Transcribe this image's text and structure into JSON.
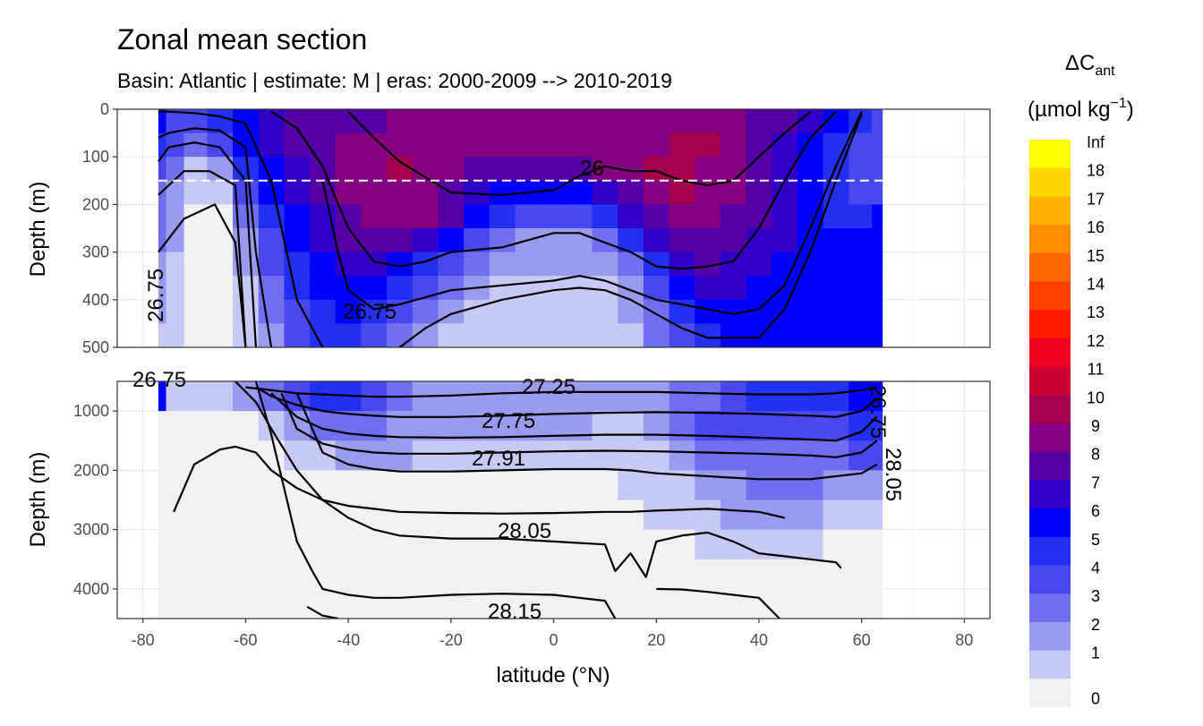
{
  "chart_data": {
    "type": "contour-section",
    "title": "Zonal mean section",
    "subtitle": "Basin: Atlantic | estimate: M  | eras: 2000-2009 --> 2010-2019",
    "xlabel": "latitude (°N)",
    "ylabel_top": "Depth (m)",
    "ylabel_bottom": "Depth (m)",
    "xlim": [
      -85,
      85
    ],
    "x_ticks": [
      "-80",
      "-60",
      "-40",
      "-20",
      "0",
      "20",
      "40",
      "60",
      "80"
    ],
    "top_panel": {
      "ylim": [
        0,
        500
      ],
      "y_ticks": [
        "0",
        "100",
        "200",
        "300",
        "400",
        "500"
      ],
      "dashed_line_depth": 150
    },
    "bottom_panel": {
      "ylim": [
        500,
        4500
      ],
      "y_ticks": [
        "1000",
        "2000",
        "3000",
        "4000"
      ]
    },
    "legend": {
      "title_main": "ΔC",
      "title_sub": "ant",
      "unit_prefix": "(µmol kg",
      "unit_sup": "−1",
      "unit_suffix": ")",
      "labels": [
        "Inf",
        "18",
        "17",
        "16",
        "15",
        "14",
        "13",
        "12",
        "11",
        "10",
        "9",
        "8",
        "7",
        "6",
        "5",
        "4",
        "3",
        "2",
        "1",
        "0"
      ],
      "colors": [
        "#ffff00",
        "#ffd700",
        "#ffb000",
        "#ff8c00",
        "#ff6600",
        "#ff4000",
        "#ff1a00",
        "#ee0020",
        "#cc0033",
        "#a2004f",
        "#850080",
        "#5500a6",
        "#3000c8",
        "#0000ff",
        "#2330f0",
        "#4848ee",
        "#7070ee",
        "#9a9aee",
        "#c8c8f4",
        "#f1f1f1"
      ]
    },
    "contour_labels_top": [
      "26",
      "26.75",
      "26.75"
    ],
    "contour_labels_bottom": [
      "26.75",
      "27.25",
      "27.75",
      "27.91",
      "28.05",
      "28.15",
      "26.75",
      "28.05"
    ],
    "x_values": [
      -77,
      -74,
      -70,
      -65,
      -60,
      -55,
      -50,
      -45,
      -40,
      -35,
      -30,
      -25,
      -20,
      -15,
      -10,
      -5,
      0,
      5,
      10,
      15,
      20,
      25,
      30,
      35,
      40,
      45,
      50,
      55,
      60,
      64
    ],
    "layer_depths_top_m": [
      25,
      75,
      125,
      175,
      225,
      275,
      325,
      375,
      425,
      475
    ],
    "cant_top": [
      [
        6,
        4,
        4,
        5,
        6,
        7,
        8,
        8,
        8,
        8,
        9,
        9,
        9,
        9,
        9,
        9,
        9,
        9,
        9,
        9,
        9,
        9,
        9,
        9,
        8,
        8,
        7,
        6,
        5,
        4
      ],
      [
        5,
        4,
        3,
        4,
        6,
        7,
        8,
        8,
        9,
        9,
        9,
        9,
        9,
        9,
        9,
        9,
        9,
        9,
        9,
        9,
        9,
        10,
        10,
        9,
        8,
        7,
        6,
        5,
        4,
        4
      ],
      [
        4,
        3,
        1,
        2,
        5,
        6,
        7,
        8,
        9,
        9,
        10,
        9,
        9,
        8,
        8,
        8,
        8,
        8,
        9,
        9,
        10,
        10,
        9,
        9,
        8,
        7,
        6,
        5,
        4,
        4
      ],
      [
        3,
        2,
        1,
        1,
        4,
        6,
        7,
        8,
        9,
        9,
        9,
        9,
        8,
        7,
        6,
        6,
        6,
        6,
        7,
        8,
        9,
        10,
        9,
        9,
        8,
        7,
        6,
        5,
        4,
        4
      ],
      [
        3,
        2,
        0,
        0,
        3,
        5,
        6,
        7,
        8,
        9,
        9,
        9,
        8,
        6,
        5,
        4,
        4,
        4,
        5,
        7,
        8,
        9,
        9,
        8,
        8,
        7,
        6,
        5,
        5,
        6
      ],
      [
        3,
        2,
        0,
        0,
        2,
        4,
        6,
        7,
        8,
        8,
        8,
        7,
        6,
        4,
        3,
        2,
        2,
        2,
        3,
        5,
        7,
        8,
        8,
        8,
        7,
        7,
        6,
        6,
        6,
        6
      ],
      [
        2,
        1,
        0,
        0,
        2,
        4,
        5,
        6,
        7,
        7,
        6,
        5,
        4,
        3,
        2,
        2,
        2,
        2,
        2,
        3,
        5,
        7,
        8,
        7,
        7,
        6,
        6,
        6,
        6,
        6
      ],
      [
        2,
        1,
        0,
        0,
        1,
        3,
        5,
        6,
        6,
        6,
        5,
        4,
        3,
        2,
        1,
        1,
        1,
        1,
        1,
        2,
        4,
        6,
        7,
        7,
        6,
        6,
        6,
        6,
        6,
        6
      ],
      [
        2,
        1,
        0,
        0,
        1,
        3,
        4,
        5,
        6,
        5,
        4,
        3,
        2,
        1,
        1,
        1,
        1,
        1,
        1,
        2,
        3,
        5,
        6,
        6,
        6,
        6,
        6,
        6,
        6,
        6
      ],
      [
        1,
        1,
        0,
        0,
        1,
        2,
        4,
        5,
        5,
        4,
        3,
        2,
        1,
        1,
        1,
        1,
        1,
        1,
        1,
        1,
        3,
        4,
        5,
        6,
        6,
        6,
        6,
        6,
        6,
        6
      ]
    ],
    "layer_depths_bottom_m": [
      750,
      1250,
      1750,
      2250,
      2750,
      3250,
      3750,
      4250
    ],
    "cant_bottom": [
      [
        6,
        1,
        1,
        1,
        2,
        3,
        4,
        5,
        5,
        4,
        3,
        2,
        2,
        2,
        2,
        2,
        2,
        2,
        2,
        2,
        2,
        3,
        3,
        4,
        5,
        5,
        5,
        5,
        6,
        6
      ],
      [
        0,
        0,
        0,
        0,
        0,
        1,
        2,
        3,
        3,
        3,
        2,
        2,
        2,
        2,
        2,
        2,
        2,
        2,
        1,
        1,
        2,
        3,
        4,
        4,
        4,
        4,
        4,
        4,
        5,
        5
      ],
      [
        0,
        0,
        0,
        0,
        0,
        0,
        1,
        1,
        2,
        2,
        2,
        1,
        1,
        1,
        1,
        1,
        1,
        1,
        1,
        1,
        1,
        2,
        3,
        3,
        3,
        3,
        3,
        3,
        4,
        4
      ],
      [
        0,
        0,
        0,
        0,
        0,
        0,
        0,
        0,
        0,
        0,
        0,
        0,
        0,
        0,
        0,
        0,
        0,
        0,
        0,
        1,
        1,
        1,
        2,
        2,
        3,
        3,
        3,
        2,
        2,
        2
      ],
      [
        0,
        0,
        0,
        0,
        0,
        0,
        0,
        0,
        0,
        0,
        0,
        0,
        0,
        0,
        0,
        0,
        0,
        0,
        0,
        0,
        1,
        1,
        1,
        2,
        2,
        2,
        2,
        1,
        1,
        1
      ],
      [
        0,
        0,
        0,
        0,
        0,
        0,
        0,
        0,
        0,
        0,
        0,
        0,
        0,
        0,
        0,
        0,
        0,
        0,
        0,
        0,
        0,
        0,
        1,
        1,
        1,
        1,
        1,
        0,
        0,
        0
      ],
      [
        0,
        0,
        0,
        0,
        0,
        0,
        0,
        0,
        0,
        0,
        0,
        0,
        0,
        0,
        0,
        0,
        0,
        0,
        0,
        0,
        0,
        0,
        0,
        0,
        0,
        0,
        0,
        0,
        0,
        0
      ],
      [
        0,
        0,
        0,
        0,
        0,
        0,
        0,
        0,
        0,
        0,
        0,
        0,
        0,
        0,
        0,
        0,
        0,
        0,
        0,
        0,
        0,
        0,
        0,
        0,
        0,
        0,
        0,
        0,
        0,
        0
      ]
    ],
    "isopycnals_top": [
      {
        "x": [
          -77,
          -75,
          -70,
          -65,
          -60,
          -55,
          -50,
          -45
        ],
        "depth": [
          5,
          5,
          8,
          15,
          30,
          150,
          400,
          500
        ]
      },
      {
        "x": [
          -77,
          -75,
          -70,
          -65,
          -60,
          -58,
          -55
        ],
        "depth": [
          60,
          50,
          40,
          45,
          80,
          300,
          500
        ]
      },
      {
        "x": [
          -77,
          -75,
          -70,
          -65,
          -60,
          -58
        ],
        "depth": [
          110,
          80,
          70,
          80,
          150,
          500
        ]
      },
      {
        "x": [
          -77,
          -72,
          -67,
          -62,
          -60
        ],
        "depth": [
          180,
          130,
          130,
          160,
          500
        ]
      },
      {
        "x": [
          -77,
          -72,
          -66,
          -62,
          -60
        ],
        "depth": [
          300,
          230,
          200,
          280,
          500
        ]
      },
      {
        "x": [
          -40,
          -35,
          -30,
          -20,
          -10,
          0,
          5,
          10,
          15,
          20,
          25,
          30,
          35,
          40,
          45,
          50
        ],
        "depth": [
          5,
          60,
          110,
          175,
          180,
          170,
          140,
          120,
          130,
          130,
          150,
          160,
          150,
          100,
          50,
          5
        ]
      },
      {
        "x": [
          -55,
          -50,
          -45,
          -40,
          -35,
          -30,
          -25,
          -20,
          -10,
          0,
          5,
          10,
          15,
          20,
          25,
          30,
          35,
          40,
          45,
          50,
          55
        ],
        "depth": [
          5,
          40,
          120,
          250,
          320,
          330,
          320,
          300,
          290,
          260,
          260,
          280,
          300,
          330,
          335,
          330,
          320,
          250,
          150,
          60,
          5
        ]
      },
      {
        "x": [
          -45,
          -42,
          -40,
          -35,
          -30,
          -20,
          -10,
          0,
          5,
          10,
          15,
          20,
          25,
          30,
          35,
          40,
          45,
          50,
          55,
          60
        ],
        "depth": [
          150,
          300,
          380,
          420,
          410,
          380,
          370,
          360,
          350,
          360,
          380,
          400,
          410,
          420,
          430,
          420,
          370,
          250,
          120,
          5
        ]
      },
      {
        "x": [
          -30,
          -25,
          -20,
          -10,
          0,
          5,
          10,
          15,
          20,
          25,
          30,
          40,
          45,
          50,
          55,
          60
        ],
        "depth": [
          500,
          460,
          430,
          400,
          380,
          375,
          380,
          400,
          430,
          460,
          480,
          480,
          420,
          300,
          150,
          10
        ]
      }
    ],
    "isopycnals_bottom": [
      {
        "x": [
          -60,
          -55,
          -50,
          -45,
          -40,
          -35,
          -30,
          -20,
          -10,
          0,
          10,
          20,
          30,
          40,
          50,
          55,
          60,
          63
        ],
        "depth": [
          600,
          650,
          700,
          720,
          740,
          760,
          760,
          740,
          700,
          680,
          680,
          680,
          700,
          720,
          720,
          700,
          650,
          600
        ]
      },
      {
        "x": [
          -58,
          -55,
          -50,
          -45,
          -40,
          -35,
          -30,
          -20,
          -10,
          0,
          10,
          20,
          30,
          40,
          50,
          55,
          60,
          63
        ],
        "depth": [
          600,
          750,
          900,
          1000,
          1050,
          1080,
          1100,
          1100,
          1080,
          1050,
          1030,
          1020,
          1030,
          1050,
          1080,
          1100,
          1000,
          800
        ]
      },
      {
        "x": [
          -55,
          -50,
          -45,
          -40,
          -35,
          -30,
          -20,
          -10,
          0,
          10,
          20,
          30,
          40,
          50,
          55,
          60,
          63
        ],
        "depth": [
          700,
          1100,
          1300,
          1380,
          1420,
          1440,
          1450,
          1440,
          1420,
          1400,
          1400,
          1420,
          1450,
          1480,
          1500,
          1350,
          1100
        ]
      },
      {
        "x": [
          -53,
          -50,
          -45,
          -40,
          -35,
          -30,
          -20,
          -10,
          0,
          10,
          20,
          30,
          40,
          50,
          55,
          60,
          63
        ],
        "depth": [
          700,
          1300,
          1550,
          1650,
          1700,
          1720,
          1720,
          1700,
          1680,
          1670,
          1680,
          1700,
          1720,
          1750,
          1780,
          1700,
          1500
        ]
      },
      {
        "x": [
          -50,
          -45,
          -40,
          -35,
          -30,
          -20,
          -10,
          0,
          10,
          15,
          20,
          30,
          40,
          50,
          55,
          60,
          63
        ],
        "depth": [
          700,
          1700,
          1900,
          1980,
          2020,
          2020,
          2000,
          1980,
          1980,
          2000,
          2050,
          2100,
          2150,
          2150,
          2100,
          2050,
          1900
        ]
      },
      {
        "x": [
          -74,
          -70,
          -65,
          -62,
          -58,
          -55,
          -50,
          -45,
          -40,
          -35,
          -30,
          -20,
          -10,
          0,
          10,
          15,
          20,
          30,
          40,
          45
        ],
        "depth": [
          2700,
          1900,
          1650,
          1600,
          1700,
          2000,
          2300,
          2500,
          2600,
          2650,
          2700,
          2720,
          2730,
          2720,
          2700,
          2700,
          2680,
          2650,
          2700,
          2800
        ]
      },
      {
        "x": [
          -62,
          -58,
          -55,
          -50,
          -45,
          -40,
          -35,
          -30,
          -20,
          -10,
          0,
          10,
          12,
          15,
          18,
          20,
          25,
          30,
          35,
          40,
          45,
          50,
          55,
          56
        ],
        "depth": [
          500,
          850,
          1300,
          2000,
          2500,
          2800,
          3000,
          3100,
          3150,
          3150,
          3200,
          3250,
          3700,
          3400,
          3800,
          3200,
          3100,
          3050,
          3200,
          3400,
          3450,
          3500,
          3550,
          3650
        ]
      },
      {
        "x": [
          -58,
          -55,
          -50,
          -47,
          -45,
          -40,
          -35,
          -30,
          -20,
          -10,
          0,
          5,
          10,
          12
        ],
        "depth": [
          500,
          1400,
          3200,
          3700,
          4000,
          4100,
          4150,
          4150,
          4100,
          4080,
          4100,
          4150,
          4200,
          4500
        ]
      },
      {
        "x": [
          -48,
          -45,
          -42
        ],
        "depth": [
          4300,
          4450,
          4500
        ]
      },
      {
        "x": [
          20,
          25,
          30,
          35,
          40,
          44
        ],
        "depth": [
          4000,
          4010,
          4050,
          4100,
          4150,
          4500
        ]
      }
    ]
  }
}
